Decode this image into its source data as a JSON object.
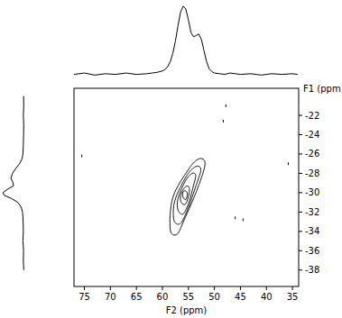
{
  "chart_data": {
    "type": "contour",
    "x_label": "F2 (ppm)",
    "y_label": "F1 (ppm)",
    "xlim": [
      77,
      33.8
    ],
    "ylim": [
      -19.2,
      -39.7
    ],
    "xticks": [
      75,
      70,
      65,
      60,
      55,
      50,
      45,
      40,
      35
    ],
    "yticks": [
      -22,
      -24,
      -26,
      -28,
      -30,
      -32,
      -34,
      -36,
      -38
    ],
    "color": "#000000",
    "contours": [
      {
        "x": [
          58.5,
          57.2,
          55.8,
          53.2,
          51.8,
          53.0,
          55.0,
          58.0
        ],
        "y": [
          -33.8,
          -34.3,
          -32.8,
          -29.5,
          -27.0,
          -26.5,
          -27.6,
          -30.5
        ]
      },
      {
        "x": [
          57.8,
          56.6,
          55.2,
          53.5,
          52.6,
          53.6,
          55.4,
          57.6
        ],
        "y": [
          -32.8,
          -33.2,
          -31.8,
          -29.2,
          -27.6,
          -27.3,
          -28.3,
          -30.8
        ]
      },
      {
        "x": [
          57.0,
          56.0,
          54.9,
          54.0,
          53.6,
          54.3,
          55.6,
          57.0
        ],
        "y": [
          -31.8,
          -32.2,
          -31.0,
          -29.2,
          -28.2,
          -28.0,
          -28.8,
          -30.6
        ]
      },
      {
        "x": [
          56.4,
          55.6,
          55.0,
          54.8,
          55.2,
          55.9,
          56.5
        ],
        "y": [
          -31.0,
          -31.2,
          -30.4,
          -29.6,
          -29.3,
          -29.6,
          -30.3
        ]
      },
      {
        "x": [
          56.0,
          55.5,
          55.2,
          55.6,
          56.1
        ],
        "y": [
          -30.5,
          -30.7,
          -30.1,
          -29.8,
          -30.0
        ]
      }
    ],
    "specks": {
      "x": [
        75.5,
        47.8,
        48.3,
        35.8,
        46.0,
        44.5
      ],
      "y": [
        -26.2,
        -21.0,
        -22.6,
        -27.0,
        -32.6,
        -32.8
      ]
    },
    "f2_projection": {
      "x": [
        77,
        75,
        73,
        71,
        69,
        67,
        65,
        63,
        62,
        61,
        60,
        59.5,
        59,
        58.5,
        58,
        57.5,
        57,
        56.5,
        56,
        55.5,
        55,
        54.5,
        54,
        53.5,
        53,
        52.5,
        52,
        51.5,
        51,
        50.5,
        50,
        49,
        48,
        47,
        45,
        43,
        41,
        39,
        37,
        35,
        34
      ],
      "values": [
        2,
        4,
        1,
        3,
        2,
        4,
        2,
        3,
        4,
        5,
        7,
        9,
        13,
        20,
        32,
        50,
        72,
        92,
        100,
        96,
        80,
        62,
        56,
        58,
        60,
        52,
        36,
        20,
        10,
        6,
        4,
        3,
        2,
        4,
        2,
        3,
        1,
        3,
        2,
        3,
        2
      ],
      "lim": [
        -5,
        105
      ]
    },
    "f1_projection": {
      "y": [
        -20,
        -21,
        -22,
        -23,
        -24,
        -25,
        -26,
        -26.5,
        -27,
        -27.5,
        -28,
        -28.5,
        -29,
        -29.3,
        -29.6,
        -30,
        -30.3,
        -30.6,
        -31,
        -31.5,
        -32,
        -32.5,
        -33,
        -34,
        -35,
        -36,
        -37,
        -38
      ],
      "values": [
        3,
        2,
        4,
        2,
        3,
        4,
        6,
        10,
        22,
        40,
        55,
        62,
        52,
        50,
        75,
        100,
        92,
        60,
        30,
        14,
        8,
        6,
        5,
        4,
        6,
        3,
        4,
        2
      ],
      "lim": [
        -5,
        105
      ]
    }
  }
}
